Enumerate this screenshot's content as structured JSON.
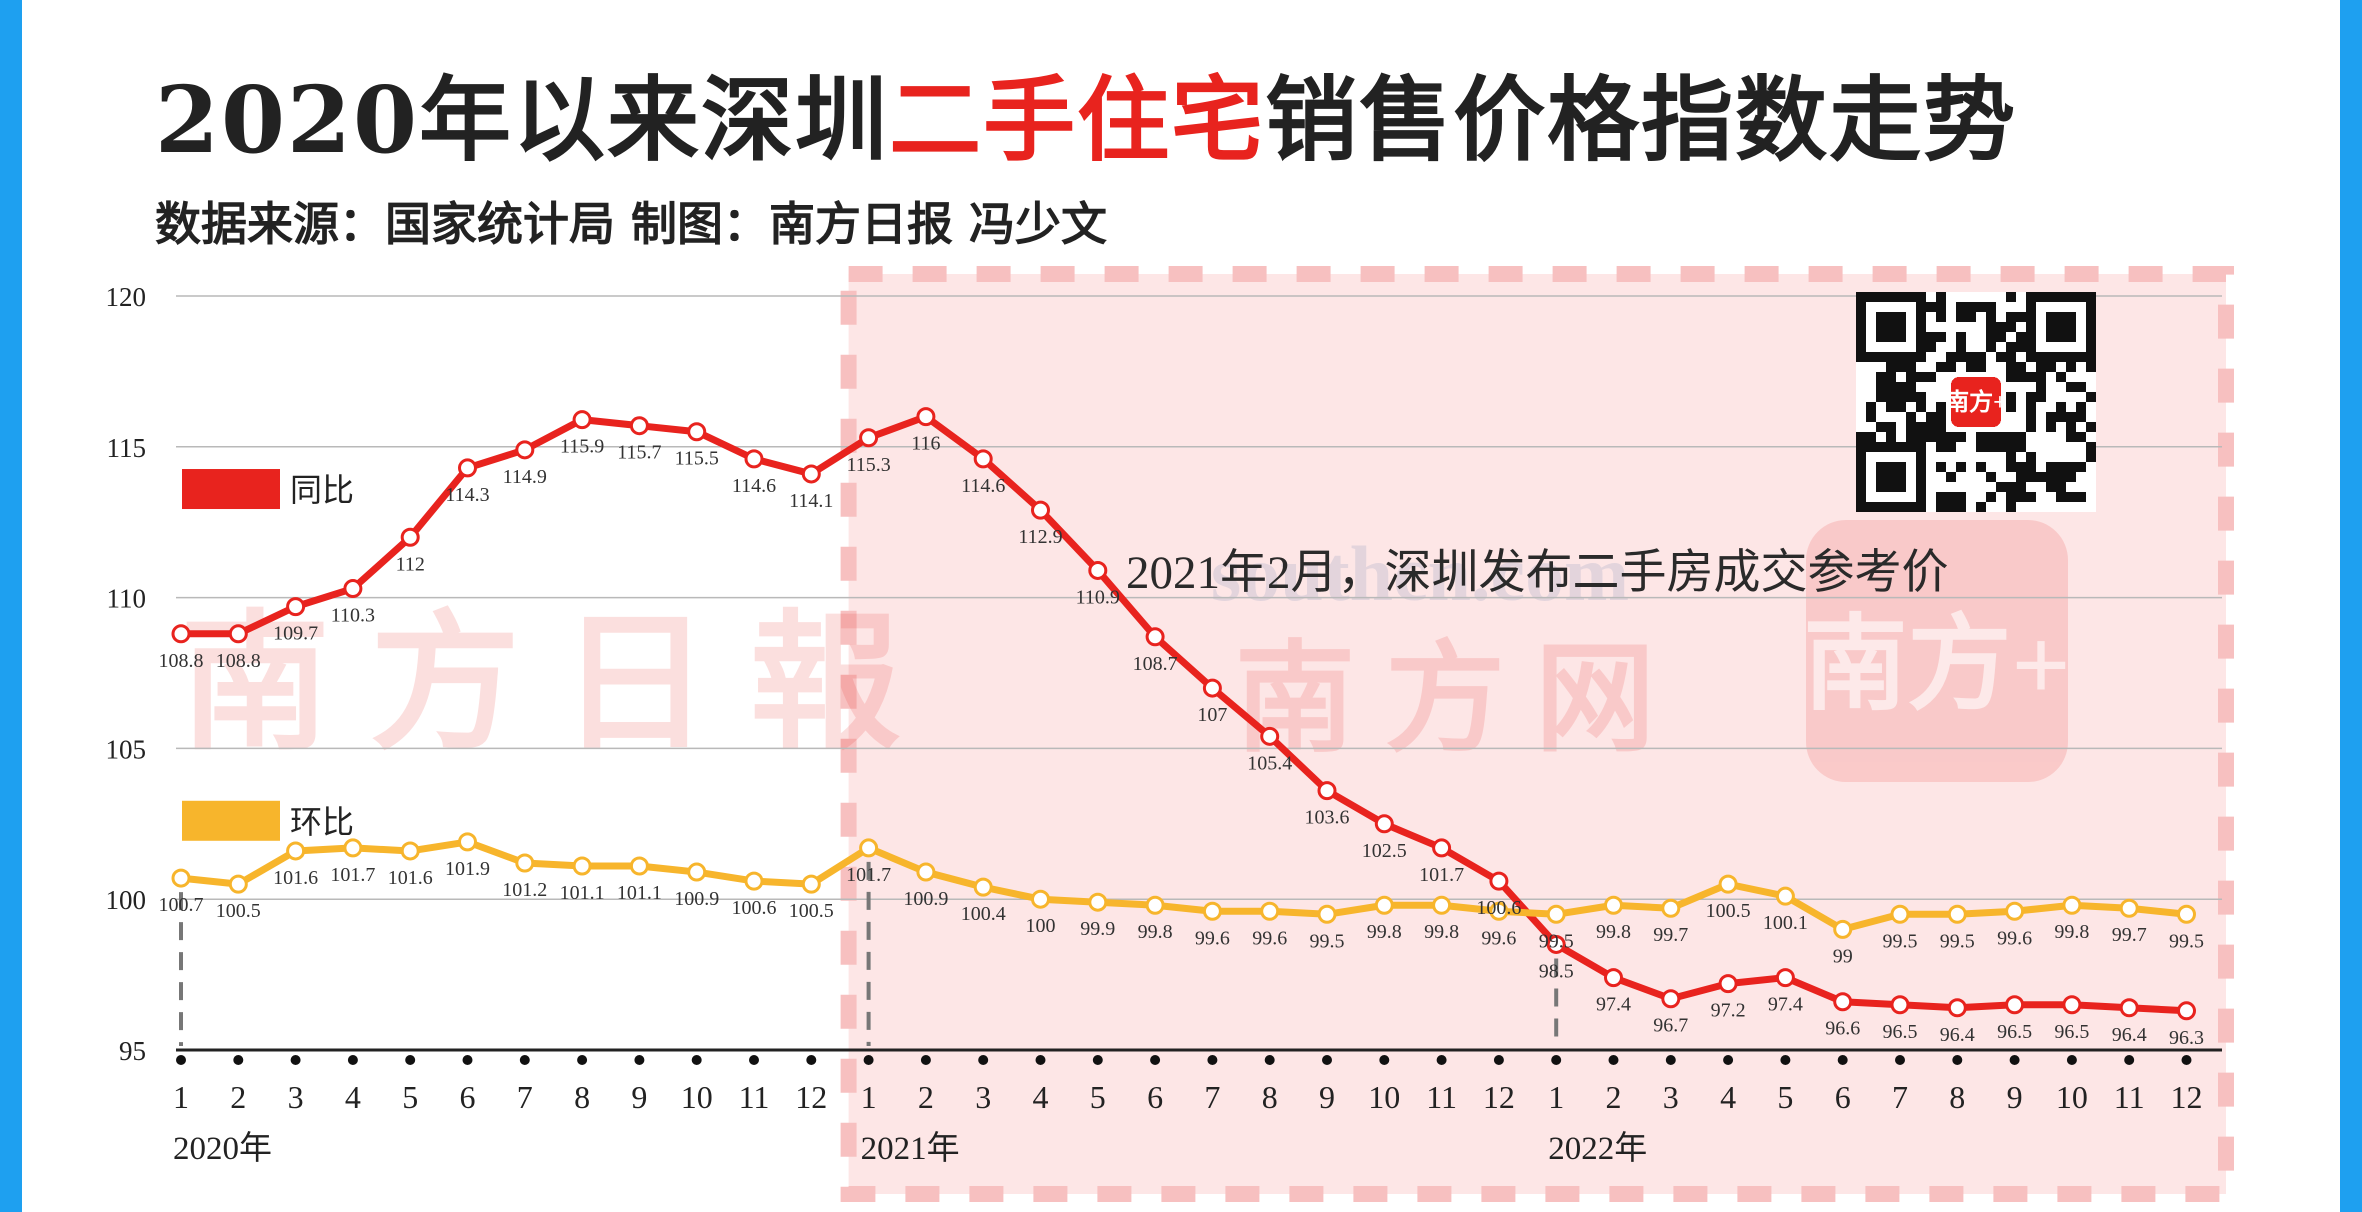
{
  "title": {
    "prefix": "2020年以来深圳",
    "highlight": "二手住宅",
    "suffix": "销售价格指数走势"
  },
  "source": "数据来源：国家统计局 制图：南方日报 冯少文",
  "annotation": "2021年2月，深圳发布二手房成交参考价",
  "watermarks": [
    "南方日報",
    "southcn.com",
    "南方网",
    "南方+"
  ],
  "qr_label": "南方+",
  "colors": {
    "yoy": "#e8231e",
    "mom": "#f7b52c",
    "highlight_band": "#fde6e6",
    "highlight_border": "#f7c0c0",
    "side_bar": "#1ea0f0",
    "grid": "#b9b9b9",
    "axis": "#222222"
  },
  "chart_data": {
    "type": "line",
    "ylim": [
      95,
      120
    ],
    "yticks": [
      95,
      100,
      105,
      110,
      115,
      120
    ],
    "grid": true,
    "legend_position": "left",
    "x": [
      "1",
      "2",
      "3",
      "4",
      "5",
      "6",
      "7",
      "8",
      "9",
      "10",
      "11",
      "12",
      "1",
      "2",
      "3",
      "4",
      "5",
      "6",
      "7",
      "8",
      "9",
      "10",
      "11",
      "12",
      "1",
      "2",
      "3",
      "4",
      "5",
      "6",
      "7",
      "8",
      "9",
      "10",
      "11",
      "12"
    ],
    "year_labels": [
      {
        "index": 0,
        "label": "2020年"
      },
      {
        "index": 12,
        "label": "2021年"
      },
      {
        "index": 24,
        "label": "2022年"
      }
    ],
    "highlight_from_index": 12,
    "series": [
      {
        "name": "同比",
        "color": "#e8231e",
        "values": [
          108.8,
          108.8,
          109.7,
          110.3,
          112,
          114.3,
          114.9,
          115.9,
          115.7,
          115.5,
          114.6,
          114.1,
          115.3,
          116,
          114.6,
          112.9,
          110.9,
          108.7,
          107,
          105.4,
          103.6,
          102.5,
          101.7,
          100.6,
          98.5,
          97.4,
          96.7,
          97.2,
          97.4,
          96.6,
          96.5,
          96.4,
          96.5,
          96.5,
          96.4,
          96.3
        ]
      },
      {
        "name": "环比",
        "color": "#f7b52c",
        "values": [
          100.7,
          100.5,
          101.6,
          101.7,
          101.6,
          101.9,
          101.2,
          101.1,
          101.1,
          100.9,
          100.6,
          100.5,
          101.7,
          100.9,
          100.4,
          100,
          99.9,
          99.8,
          99.6,
          99.6,
          99.5,
          99.8,
          99.8,
          99.6,
          99.5,
          99.8,
          99.7,
          100.5,
          100.1,
          99,
          99.5,
          99.5,
          99.6,
          99.8,
          99.7,
          99.5
        ]
      }
    ]
  }
}
